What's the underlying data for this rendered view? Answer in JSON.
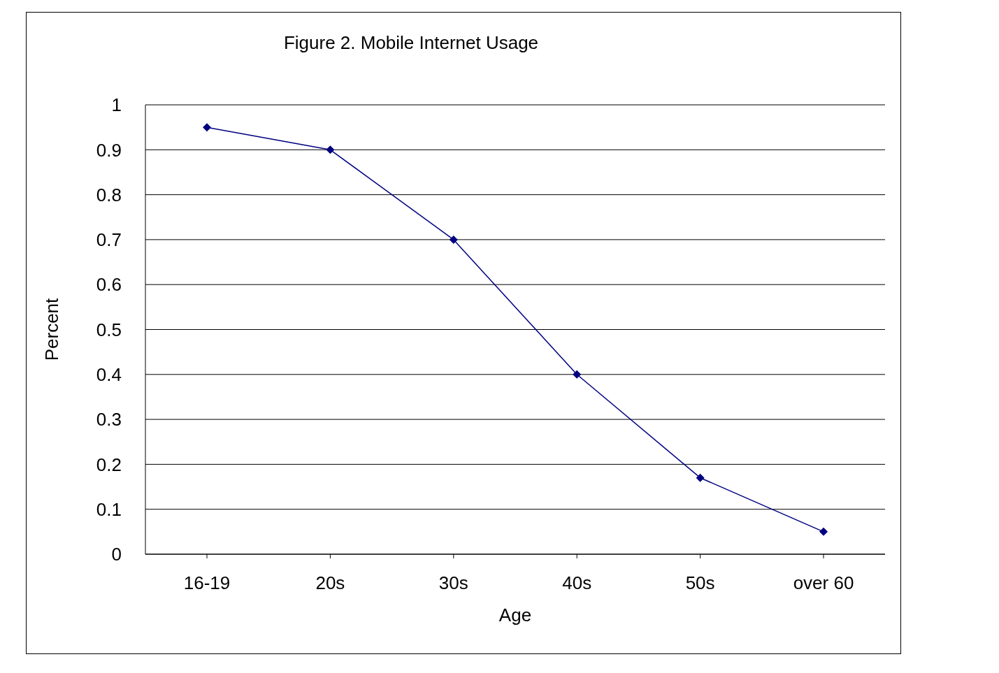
{
  "chart_data": {
    "type": "line",
    "title": "Figure 2. Mobile Internet Usage",
    "xlabel": "Age",
    "ylabel": "Percent",
    "categories": [
      "16-19",
      "20s",
      "30s",
      "40s",
      "50s",
      "over 60"
    ],
    "series": [
      {
        "color": "#000080",
        "values": [
          0.95,
          0.9,
          0.7,
          0.4,
          0.17,
          0.05
        ]
      }
    ],
    "ylim": [
      0,
      1
    ],
    "yticks": [
      0,
      0.1,
      0.2,
      0.3,
      0.4,
      0.5,
      0.6,
      0.7,
      0.8,
      0.9,
      1
    ],
    "grid": "y",
    "marker": "diamond",
    "line_style": "solid"
  }
}
